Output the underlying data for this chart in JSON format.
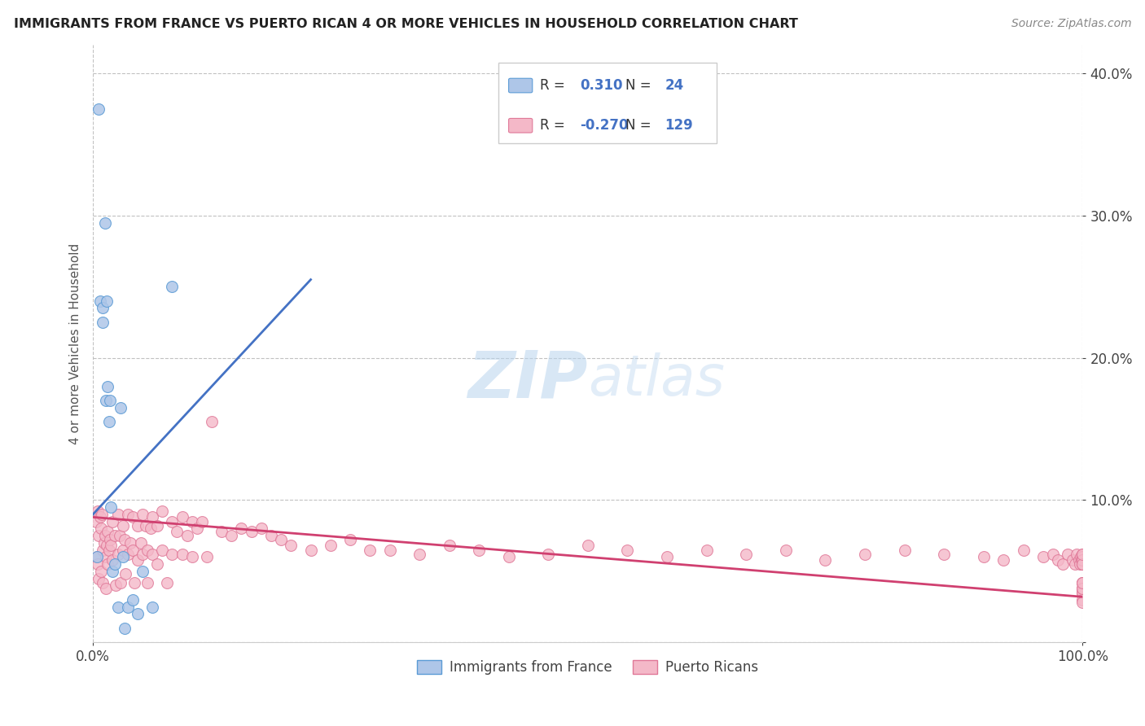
{
  "title": "IMMIGRANTS FROM FRANCE VS PUERTO RICAN 4 OR MORE VEHICLES IN HOUSEHOLD CORRELATION CHART",
  "source": "Source: ZipAtlas.com",
  "ylabel": "4 or more Vehicles in Household",
  "xlim": [
    0.0,
    1.0
  ],
  "ylim": [
    0.0,
    0.42
  ],
  "xtick_positions": [
    0.0,
    1.0
  ],
  "xtick_labels": [
    "0.0%",
    "100.0%"
  ],
  "ytick_positions": [
    0.0,
    0.1,
    0.2,
    0.3,
    0.4
  ],
  "ytick_labels": [
    "",
    "10.0%",
    "20.0%",
    "30.0%",
    "40.0%"
  ],
  "blue_color": "#aec6e8",
  "blue_edge": "#5b9bd5",
  "pink_color": "#f4b8c8",
  "pink_edge": "#e07898",
  "trend_blue_color": "#4472c4",
  "trend_pink_color": "#d04070",
  "R_blue": 0.31,
  "N_blue": 24,
  "R_pink": -0.27,
  "N_pink": 129,
  "legend_label_blue": "Immigrants from France",
  "legend_label_pink": "Puerto Ricans",
  "watermark_zip": "ZIP",
  "watermark_atlas": "atlas",
  "blue_x": [
    0.004,
    0.006,
    0.007,
    0.01,
    0.01,
    0.012,
    0.013,
    0.014,
    0.015,
    0.016,
    0.017,
    0.018,
    0.02,
    0.022,
    0.025,
    0.028,
    0.03,
    0.032,
    0.035,
    0.04,
    0.045,
    0.05,
    0.06,
    0.08
  ],
  "blue_y": [
    0.06,
    0.375,
    0.24,
    0.235,
    0.225,
    0.295,
    0.17,
    0.24,
    0.18,
    0.155,
    0.17,
    0.095,
    0.05,
    0.055,
    0.025,
    0.165,
    0.06,
    0.01,
    0.025,
    0.03,
    0.02,
    0.05,
    0.025,
    0.25
  ],
  "pink_x": [
    0.003,
    0.004,
    0.005,
    0.005,
    0.006,
    0.006,
    0.007,
    0.008,
    0.008,
    0.009,
    0.01,
    0.01,
    0.011,
    0.012,
    0.013,
    0.013,
    0.014,
    0.015,
    0.015,
    0.016,
    0.017,
    0.018,
    0.02,
    0.02,
    0.022,
    0.023,
    0.025,
    0.025,
    0.027,
    0.028,
    0.03,
    0.03,
    0.032,
    0.033,
    0.035,
    0.035,
    0.038,
    0.04,
    0.04,
    0.042,
    0.045,
    0.045,
    0.048,
    0.05,
    0.05,
    0.053,
    0.055,
    0.055,
    0.058,
    0.06,
    0.06,
    0.065,
    0.065,
    0.07,
    0.07,
    0.075,
    0.08,
    0.08,
    0.085,
    0.09,
    0.09,
    0.095,
    0.1,
    0.1,
    0.105,
    0.11,
    0.115,
    0.12,
    0.13,
    0.14,
    0.15,
    0.16,
    0.17,
    0.18,
    0.19,
    0.2,
    0.22,
    0.24,
    0.26,
    0.28,
    0.3,
    0.33,
    0.36,
    0.39,
    0.42,
    0.46,
    0.5,
    0.54,
    0.58,
    0.62,
    0.66,
    0.7,
    0.74,
    0.78,
    0.82,
    0.86,
    0.9,
    0.92,
    0.94,
    0.96,
    0.97,
    0.975,
    0.98,
    0.985,
    0.99,
    0.992,
    0.994,
    0.996,
    0.997,
    0.998,
    0.999,
    1.0,
    1.0,
    1.0,
    1.0,
    1.0,
    1.0,
    1.0,
    1.0,
    1.0,
    1.0,
    1.0,
    1.0,
    1.0,
    1.0,
    1.0,
    1.0,
    1.0,
    1.0
  ],
  "pink_y": [
    0.085,
    0.06,
    0.092,
    0.055,
    0.075,
    0.045,
    0.088,
    0.08,
    0.05,
    0.09,
    0.065,
    0.042,
    0.07,
    0.075,
    0.06,
    0.038,
    0.068,
    0.078,
    0.055,
    0.065,
    0.072,
    0.068,
    0.085,
    0.058,
    0.075,
    0.04,
    0.09,
    0.062,
    0.075,
    0.042,
    0.082,
    0.065,
    0.072,
    0.048,
    0.09,
    0.062,
    0.07,
    0.088,
    0.065,
    0.042,
    0.082,
    0.058,
    0.07,
    0.09,
    0.062,
    0.082,
    0.065,
    0.042,
    0.08,
    0.088,
    0.062,
    0.082,
    0.055,
    0.092,
    0.065,
    0.042,
    0.085,
    0.062,
    0.078,
    0.088,
    0.062,
    0.075,
    0.085,
    0.06,
    0.08,
    0.085,
    0.06,
    0.155,
    0.078,
    0.075,
    0.08,
    0.078,
    0.08,
    0.075,
    0.072,
    0.068,
    0.065,
    0.068,
    0.072,
    0.065,
    0.065,
    0.062,
    0.068,
    0.065,
    0.06,
    0.062,
    0.068,
    0.065,
    0.06,
    0.065,
    0.062,
    0.065,
    0.058,
    0.062,
    0.065,
    0.062,
    0.06,
    0.058,
    0.065,
    0.06,
    0.062,
    0.058,
    0.055,
    0.062,
    0.058,
    0.055,
    0.062,
    0.058,
    0.055,
    0.06,
    0.058,
    0.055,
    0.062,
    0.058,
    0.055,
    0.06,
    0.058,
    0.055,
    0.062,
    0.042,
    0.038,
    0.035,
    0.038,
    0.042,
    0.035,
    0.038,
    0.042,
    0.03,
    0.028
  ]
}
